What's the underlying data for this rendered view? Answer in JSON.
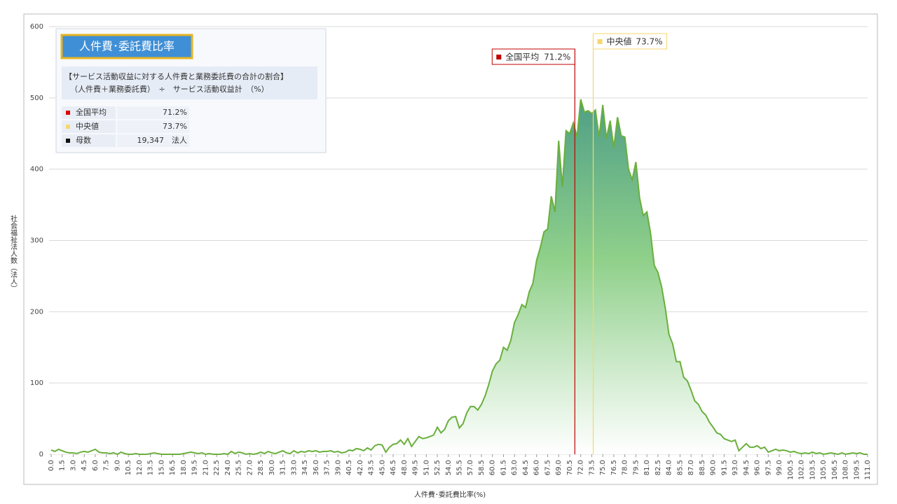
{
  "chart_data": {
    "type": "area",
    "x_label": "人件費･委託費比率(%)",
    "y_label": "社会福祉法人数（法人）",
    "xlim": [
      0,
      111
    ],
    "ylim": [
      0,
      600
    ],
    "yticks": [
      0,
      100,
      200,
      300,
      400,
      500,
      600
    ],
    "xticks": [
      {
        "value": 0,
        "label": "0.0"
      },
      {
        "value": 1.5,
        "label": "1.5"
      },
      {
        "value": 3,
        "label": "3.0"
      },
      {
        "value": 4.5,
        "label": "4.5"
      },
      {
        "value": 6,
        "label": "6.0"
      },
      {
        "value": 7.5,
        "label": "7.5"
      },
      {
        "value": 9,
        "label": "9.0"
      },
      {
        "value": 10.5,
        "label": "10.5"
      },
      {
        "value": 12,
        "label": "12.0"
      },
      {
        "value": 13.5,
        "label": "13.5"
      },
      {
        "value": 15,
        "label": "15.0"
      },
      {
        "value": 16.5,
        "label": "16.5"
      },
      {
        "value": 18,
        "label": "18.0"
      },
      {
        "value": 19.5,
        "label": "19.5"
      },
      {
        "value": 21,
        "label": "21.0"
      },
      {
        "value": 22.5,
        "label": "22.5"
      },
      {
        "value": 24,
        "label": "24.0"
      },
      {
        "value": 25.5,
        "label": "25.5"
      },
      {
        "value": 27,
        "label": "27.0"
      },
      {
        "value": 28.5,
        "label": "28.5"
      },
      {
        "value": 30,
        "label": "30.0"
      },
      {
        "value": 31.5,
        "label": "31.5"
      },
      {
        "value": 33,
        "label": "33.0"
      },
      {
        "value": 34.5,
        "label": "34.5"
      },
      {
        "value": 36,
        "label": "36.0"
      },
      {
        "value": 37.5,
        "label": "37.5"
      },
      {
        "value": 39,
        "label": "39.0"
      },
      {
        "value": 40.5,
        "label": "40.5"
      },
      {
        "value": 42,
        "label": "42.0"
      },
      {
        "value": 43.5,
        "label": "43.5"
      },
      {
        "value": 45,
        "label": "45.0"
      },
      {
        "value": 46.5,
        "label": "46.5"
      },
      {
        "value": 48,
        "label": "48.0"
      },
      {
        "value": 49.5,
        "label": "49.5"
      },
      {
        "value": 51,
        "label": "51.0"
      },
      {
        "value": 52.5,
        "label": "52.5"
      },
      {
        "value": 54,
        "label": "54.0"
      },
      {
        "value": 55.5,
        "label": "55.5"
      },
      {
        "value": 57,
        "label": "57.0"
      },
      {
        "value": 58.5,
        "label": "58.5"
      },
      {
        "value": 60,
        "label": "60.0"
      },
      {
        "value": 61.5,
        "label": "61.5"
      },
      {
        "value": 63,
        "label": "63.0"
      },
      {
        "value": 64.5,
        "label": "64.5"
      },
      {
        "value": 66,
        "label": "66.0"
      },
      {
        "value": 67.5,
        "label": "67.5"
      },
      {
        "value": 69,
        "label": "69.0"
      },
      {
        "value": 70.5,
        "label": "70.5"
      },
      {
        "value": 72,
        "label": "72.0"
      },
      {
        "value": 73.5,
        "label": "73.5"
      },
      {
        "value": 75,
        "label": "75.0"
      },
      {
        "value": 76.5,
        "label": "76.5"
      },
      {
        "value": 78,
        "label": "78.0"
      },
      {
        "value": 79.5,
        "label": "79.5"
      },
      {
        "value": 81,
        "label": "81.0"
      },
      {
        "value": 82.5,
        "label": "82.5"
      },
      {
        "value": 84,
        "label": "84.0"
      },
      {
        "value": 85.5,
        "label": "85.5"
      },
      {
        "value": 87,
        "label": "87.0"
      },
      {
        "value": 88.5,
        "label": "88.5"
      },
      {
        "value": 90,
        "label": "90.0"
      },
      {
        "value": 91.5,
        "label": "91.5"
      },
      {
        "value": 93,
        "label": "93.0"
      },
      {
        "value": 94.5,
        "label": "94.5"
      },
      {
        "value": 96,
        "label": "96.0"
      },
      {
        "value": 97.5,
        "label": "97.5"
      },
      {
        "value": 99,
        "label": "99.0"
      },
      {
        "value": 100.5,
        "label": "100.5"
      },
      {
        "value": 102,
        "label": "102.0"
      },
      {
        "value": 103.5,
        "label": "103.5"
      },
      {
        "value": 105,
        "label": "105.0"
      },
      {
        "value": 106.5,
        "label": "106.5"
      },
      {
        "value": 108,
        "label": "108.0"
      },
      {
        "value": 109.5,
        "label": "109.5"
      },
      {
        "value": 111,
        "label": "111.0"
      }
    ],
    "grid": true,
    "x": [
      0,
      0.5,
      1,
      1.5,
      2,
      2.5,
      3,
      3.5,
      4,
      4.5,
      5,
      5.5,
      6,
      6.5,
      7,
      7.5,
      8,
      8.5,
      9,
      9.5,
      10,
      10.5,
      11,
      11.5,
      12,
      12.5,
      13,
      13.5,
      14,
      14.5,
      15,
      15.5,
      16,
      16.5,
      17,
      17.5,
      18,
      18.5,
      19,
      19.5,
      20,
      20.5,
      21,
      21.5,
      22,
      22.5,
      23,
      23.5,
      24,
      24.5,
      25,
      25.5,
      26,
      26.5,
      27,
      27.5,
      28,
      28.5,
      29,
      29.5,
      30,
      30.5,
      31,
      31.5,
      32,
      32.5,
      33,
      33.5,
      34,
      34.5,
      35,
      35.5,
      36,
      36.5,
      37,
      37.5,
      38,
      38.5,
      39,
      39.5,
      40,
      40.5,
      41,
      41.5,
      42,
      42.5,
      43,
      43.5,
      44,
      44.5,
      45,
      45.5,
      46,
      46.5,
      47,
      47.5,
      48,
      48.5,
      49,
      49.5,
      50,
      50.5,
      51,
      51.5,
      52,
      52.5,
      53,
      53.5,
      54,
      54.5,
      55,
      55.5,
      56,
      56.5,
      57,
      57.5,
      58,
      58.5,
      59,
      59.5,
      60,
      60.5,
      61,
      61.5,
      62,
      62.5,
      63,
      63.5,
      64,
      64.5,
      65,
      65.5,
      66,
      66.5,
      67,
      67.5,
      68,
      68.5,
      69,
      69.5,
      70,
      70.5,
      71,
      71.5,
      72,
      72.5,
      73,
      73.5,
      74,
      74.5,
      75,
      75.5,
      76,
      76.5,
      77,
      77.5,
      78,
      78.5,
      79,
      79.5,
      80,
      80.5,
      81,
      81.5,
      82,
      82.5,
      83,
      83.5,
      84,
      84.5,
      85,
      85.5,
      86,
      86.5,
      87,
      87.5,
      88,
      88.5,
      89,
      89.5,
      90,
      90.5,
      91,
      91.5,
      92,
      92.5,
      93,
      93.5,
      94,
      94.5,
      95,
      95.5,
      96,
      96.5,
      97,
      97.5,
      98,
      98.5,
      99,
      99.5,
      100,
      100.5,
      101,
      101.5,
      102,
      102.5,
      103,
      103.5,
      104,
      104.5,
      105,
      105.5,
      106,
      106.5,
      107,
      107.5,
      108,
      108.5,
      109,
      109.5,
      110,
      110.5,
      111
    ],
    "series": [
      {
        "color": "#6aaf3d",
        "values": [
          6,
          4,
          7,
          5,
          3,
          2,
          2,
          1,
          3,
          4,
          3,
          5,
          7,
          3,
          2,
          2,
          1,
          2,
          0,
          3,
          1,
          0,
          0,
          1,
          0,
          0,
          0,
          1,
          2,
          1,
          0,
          0,
          0,
          0,
          0,
          0,
          1,
          2,
          3,
          2,
          1,
          2,
          0,
          1,
          0,
          0,
          0,
          1,
          0,
          4,
          1,
          3,
          2,
          0,
          1,
          0,
          1,
          3,
          1,
          4,
          2,
          1,
          3,
          5,
          2,
          1,
          5,
          2,
          4,
          3,
          5,
          4,
          5,
          3,
          4,
          4,
          5,
          3,
          4,
          2,
          3,
          6,
          5,
          8,
          7,
          5,
          9,
          6,
          12,
          14,
          13,
          3,
          10,
          14,
          15,
          20,
          14,
          22,
          11,
          18,
          25,
          22,
          23,
          25,
          27,
          38,
          30,
          35,
          47,
          52,
          53,
          37,
          43,
          58,
          67,
          67,
          62,
          70,
          82,
          98,
          117,
          127,
          132,
          150,
          146,
          160,
          185,
          196,
          210,
          206,
          228,
          240,
          272,
          290,
          312,
          316,
          362,
          340,
          440,
          375,
          454,
          450,
          465,
          445,
          498,
          480,
          482,
          478,
          483,
          445,
          490,
          443,
          468,
          430,
          473,
          447,
          445,
          400,
          385,
          410,
          360,
          335,
          340,
          310,
          265,
          255,
          235,
          205,
          168,
          155,
          130,
          130,
          108,
          103,
          90,
          75,
          70,
          60,
          55,
          45,
          38,
          30,
          28,
          22,
          20,
          18,
          20,
          5,
          10,
          15,
          10,
          10,
          12,
          8,
          10,
          3,
          5,
          7,
          5,
          6,
          5,
          3,
          4,
          2,
          1,
          2,
          1,
          3,
          1,
          2,
          0,
          1,
          2,
          1,
          0,
          2,
          0,
          1,
          2,
          1,
          2,
          0,
          0
        ]
      }
    ],
    "reference_lines": [
      {
        "label": "全国平均",
        "value": 71.2,
        "value_label": "71.2%",
        "color": "#c00000"
      },
      {
        "label": "中央値",
        "value": 73.7,
        "value_label": "73.7%",
        "color": "#f5d76e"
      }
    ],
    "info": {
      "title": "人件費･委託費比率",
      "description": [
        "【サービス活動収益に対する人件費と業務委託費の合計の割合】",
        "（人件費＋業務委託費）　÷　サービス活動収益計　（%）"
      ],
      "rows": [
        [
          "全国平均",
          "71.2%"
        ],
        [
          "中央値",
          "73.7%"
        ],
        [
          "母数",
          "19,347　法人"
        ]
      ],
      "row_colors": [
        "#e00000",
        "#f5d76e",
        "#111111"
      ]
    }
  }
}
